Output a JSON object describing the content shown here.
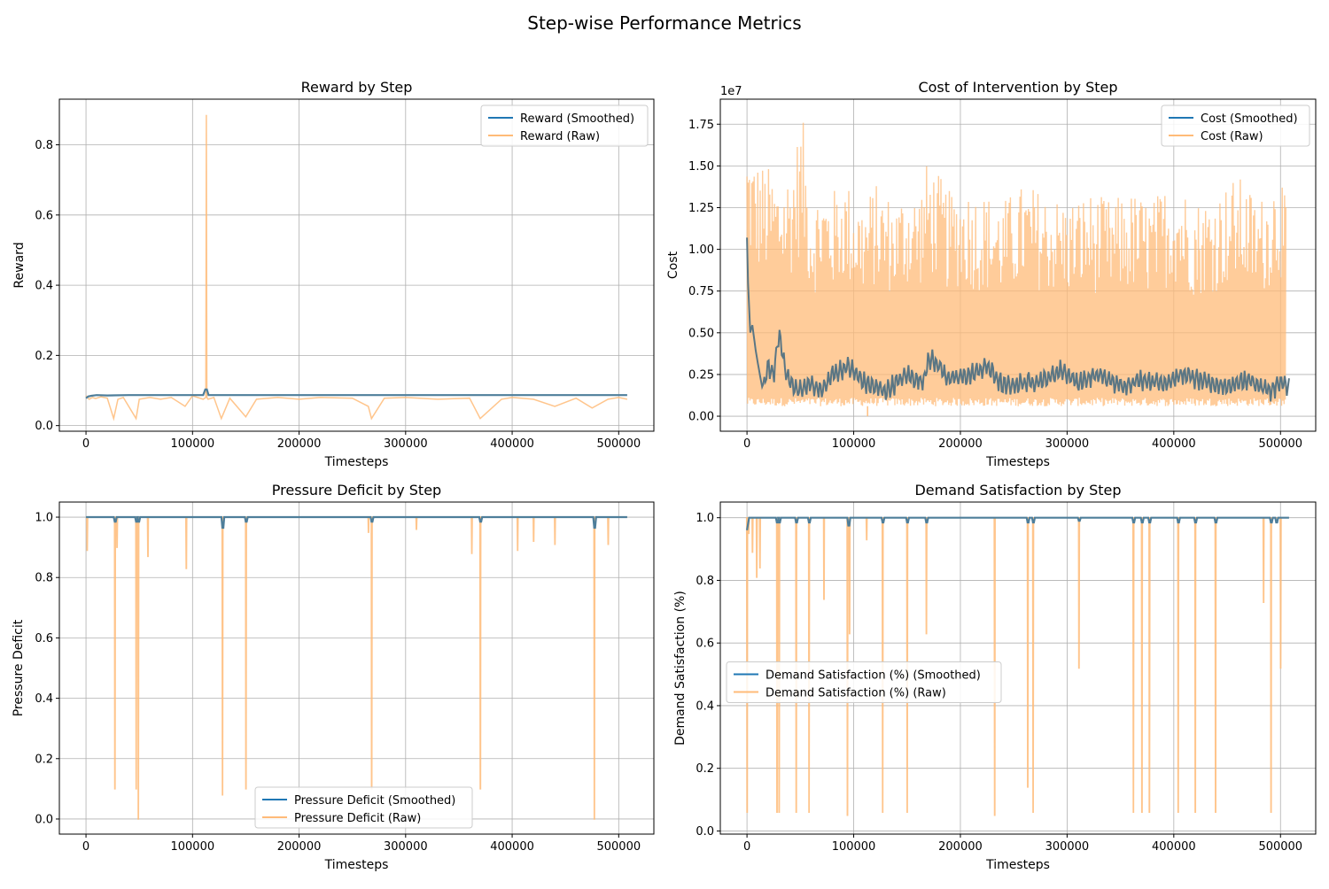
{
  "figure": {
    "title": "Step-wise Performance Metrics"
  },
  "colors": {
    "smoothed": "#1f77b4",
    "raw": "#ffbb78",
    "grid": "#b0b0b0"
  },
  "chart_data": [
    {
      "type": "line",
      "title": "Reward by Step",
      "xlabel": "Timesteps",
      "ylabel": "Reward",
      "xlim": [
        -25000,
        533000
      ],
      "ylim": [
        -0.016,
        0.93
      ],
      "xticks": [
        0,
        100000,
        200000,
        300000,
        400000,
        500000
      ],
      "xtick_labels": [
        "0",
        "100000",
        "200000",
        "300000",
        "400000",
        "500000"
      ],
      "yticks": [
        0.0,
        0.2,
        0.4,
        0.6,
        0.8
      ],
      "ytick_labels": [
        "0.0",
        "0.2",
        "0.4",
        "0.6",
        "0.8"
      ],
      "grid": true,
      "legend_position": "top-right",
      "series": [
        {
          "name": "Reward (Smoothed)",
          "role": "smoothed",
          "x": [
            0,
            2000,
            5000,
            10000,
            20000,
            40000,
            60000,
            80000,
            100000,
            110000,
            112000,
            113500,
            115000,
            118000,
            130000,
            160000,
            200000,
            250000,
            300000,
            350000,
            400000,
            450000,
            500000,
            508000
          ],
          "y": [
            0.078,
            0.083,
            0.085,
            0.087,
            0.086,
            0.087,
            0.087,
            0.087,
            0.087,
            0.087,
            0.103,
            0.103,
            0.087,
            0.087,
            0.087,
            0.087,
            0.087,
            0.087,
            0.087,
            0.087,
            0.087,
            0.087,
            0.087,
            0.087
          ]
        },
        {
          "name": "Reward (Raw)",
          "role": "raw",
          "x": [
            0,
            3000,
            6000,
            9000,
            14000,
            20000,
            26000,
            30000,
            35000,
            47000,
            50000,
            60000,
            70000,
            80000,
            93000,
            100000,
            110000,
            112500,
            113000,
            113500,
            114500,
            120000,
            127000,
            135000,
            150000,
            160000,
            180000,
            200000,
            220000,
            250000,
            265000,
            268000,
            280000,
            300000,
            330000,
            360000,
            370000,
            390000,
            400000,
            420000,
            440000,
            460000,
            475000,
            490000,
            500000,
            508000
          ],
          "y": [
            0.085,
            0.075,
            0.08,
            0.077,
            0.082,
            0.078,
            0.02,
            0.075,
            0.08,
            0.02,
            0.075,
            0.08,
            0.075,
            0.08,
            0.055,
            0.085,
            0.075,
            0.08,
            0.885,
            0.08,
            0.075,
            0.08,
            0.02,
            0.078,
            0.025,
            0.075,
            0.08,
            0.075,
            0.08,
            0.078,
            0.055,
            0.02,
            0.078,
            0.08,
            0.075,
            0.078,
            0.02,
            0.075,
            0.08,
            0.075,
            0.055,
            0.078,
            0.05,
            0.075,
            0.08,
            0.075
          ]
        }
      ]
    },
    {
      "type": "line",
      "title": "Cost of Intervention by Step",
      "xlabel": "Timesteps",
      "ylabel": "Cost",
      "offset_label": "1e7",
      "xlim": [
        -25000,
        533000
      ],
      "ylim": [
        -0.09,
        1.9
      ],
      "xticks": [
        0,
        100000,
        200000,
        300000,
        400000,
        500000
      ],
      "xtick_labels": [
        "0",
        "100000",
        "200000",
        "300000",
        "400000",
        "500000"
      ],
      "yticks": [
        0.0,
        0.25,
        0.5,
        0.75,
        1.0,
        1.25,
        1.5,
        1.75
      ],
      "ytick_labels": [
        "0.00",
        "0.25",
        "0.50",
        "0.75",
        "1.00",
        "1.25",
        "1.50",
        "1.75"
      ],
      "grid": true,
      "legend_position": "top-right",
      "series": [
        {
          "name": "Cost (Smoothed)",
          "role": "smoothed",
          "x": [
            0,
            1000,
            3000,
            5000,
            8000,
            12000,
            15000,
            20000,
            25000,
            30000,
            35000,
            40000,
            50000,
            60000,
            70000,
            80000,
            95000,
            110000,
            130000,
            150000,
            165000,
            170000,
            180000,
            190000,
            210000,
            225000,
            240000,
            260000,
            280000,
            295000,
            310000,
            330000,
            350000,
            370000,
            390000,
            410000,
            430000,
            450000,
            470000,
            490000,
            500000,
            508000
          ],
          "y": [
            1.07,
            0.8,
            0.5,
            0.55,
            0.4,
            0.25,
            0.15,
            0.3,
            0.25,
            0.5,
            0.3,
            0.2,
            0.15,
            0.2,
            0.15,
            0.25,
            0.3,
            0.2,
            0.15,
            0.25,
            0.2,
            0.35,
            0.3,
            0.22,
            0.25,
            0.3,
            0.18,
            0.2,
            0.22,
            0.28,
            0.2,
            0.25,
            0.18,
            0.22,
            0.2,
            0.25,
            0.2,
            0.18,
            0.22,
            0.15,
            0.2,
            0.17
          ]
        },
        {
          "name": "Cost (Raw)",
          "role": "raw",
          "pattern": "spikes",
          "x": [
            0,
            5000,
            10000,
            20000,
            30000,
            40000,
            52000,
            60000,
            70000,
            80000,
            90000,
            100000,
            110000,
            120000,
            130000,
            140000,
            150000,
            160000,
            170000,
            180000,
            190000,
            200000,
            220000,
            240000,
            260000,
            280000,
            300000,
            320000,
            340000,
            360000,
            380000,
            400000,
            420000,
            440000,
            460000,
            480000,
            500000,
            505000
          ],
          "y": [
            1.7,
            1.6,
            1.55,
            1.5,
            1.45,
            1.5,
            1.81,
            1.3,
            1.4,
            1.35,
            1.45,
            1.35,
            1.3,
            1.4,
            1.35,
            1.3,
            1.4,
            1.35,
            1.55,
            1.45,
            1.35,
            1.4,
            1.35,
            1.3,
            1.4,
            1.35,
            1.3,
            1.35,
            1.3,
            1.35,
            1.3,
            1.45,
            1.3,
            1.35,
            1.45,
            1.3,
            1.52,
            1.27
          ],
          "baseline": 0.06,
          "dip": {
            "x": 113000,
            "y": 0.0
          }
        }
      ]
    },
    {
      "type": "line",
      "title": "Pressure Deficit by Step",
      "xlabel": "Timesteps",
      "ylabel": "Pressure Deficit",
      "xlim": [
        -25000,
        533000
      ],
      "ylim": [
        -0.05,
        1.05
      ],
      "xticks": [
        0,
        100000,
        200000,
        300000,
        400000,
        500000
      ],
      "xtick_labels": [
        "0",
        "100000",
        "200000",
        "300000",
        "400000",
        "500000"
      ],
      "yticks": [
        0.0,
        0.2,
        0.4,
        0.6,
        0.8,
        1.0
      ],
      "ytick_labels": [
        "0.0",
        "0.2",
        "0.4",
        "0.6",
        "0.8",
        "1.0"
      ],
      "grid": true,
      "legend_position": "lower center",
      "series": [
        {
          "name": "Pressure Deficit (Smoothed)",
          "role": "smoothed",
          "baseline": 1.0,
          "dips_x": [
            27000,
            47000,
            49000,
            128000,
            150000,
            268000,
            370000,
            477000
          ],
          "dips_y": [
            0.985,
            0.985,
            0.985,
            0.965,
            0.985,
            0.985,
            0.985,
            0.965
          ]
        },
        {
          "name": "Pressure Deficit (Raw)",
          "role": "raw",
          "baseline": 1.0,
          "dips_x": [
            1000,
            27000,
            29000,
            47000,
            49000,
            58000,
            94000,
            128000,
            150000,
            265000,
            268000,
            310000,
            362000,
            370000,
            405000,
            420000,
            440000,
            477000,
            490000
          ],
          "dips_y": [
            0.89,
            0.1,
            0.9,
            0.1,
            0.0,
            0.87,
            0.83,
            0.08,
            0.1,
            0.95,
            0.1,
            0.96,
            0.88,
            0.1,
            0.89,
            0.92,
            0.91,
            0.0,
            0.91
          ]
        }
      ]
    },
    {
      "type": "line",
      "title": "Demand Satisfaction by Step",
      "xlabel": "Timesteps",
      "ylabel": "Demand Satisfaction (%)",
      "xlim": [
        -25000,
        533000
      ],
      "ylim": [
        -0.01,
        1.05
      ],
      "xticks": [
        0,
        100000,
        200000,
        300000,
        400000,
        500000
      ],
      "xtick_labels": [
        "0",
        "100000",
        "200000",
        "300000",
        "400000",
        "500000"
      ],
      "yticks": [
        0.0,
        0.2,
        0.4,
        0.6,
        0.8,
        1.0
      ],
      "ytick_labels": [
        "0.0",
        "0.2",
        "0.4",
        "0.6",
        "0.8",
        "1.0"
      ],
      "grid": true,
      "legend_position": "center-left",
      "series": [
        {
          "name": "Demand Satisfaction (%) (Smoothed)",
          "role": "smoothed",
          "baseline": 1.0,
          "start": 0.96,
          "dips_x": [
            28000,
            30000,
            46000,
            58000,
            95000,
            127000,
            150000,
            168000,
            263000,
            268000,
            311000,
            362000,
            370000,
            377000,
            404000,
            420000,
            439000,
            491000,
            496000
          ],
          "dips_y": [
            0.985,
            0.985,
            0.985,
            0.985,
            0.975,
            0.985,
            0.985,
            0.985,
            0.985,
            0.985,
            0.99,
            0.985,
            0.985,
            0.985,
            0.985,
            0.985,
            0.985,
            0.985,
            0.985
          ]
        },
        {
          "name": "Demand Satisfaction (%) (Raw)",
          "role": "raw",
          "baseline": 1.0,
          "dips_x": [
            0,
            1500,
            5000,
            9000,
            12000,
            28000,
            30000,
            46000,
            58000,
            72000,
            94000,
            96000,
            112000,
            127000,
            150000,
            168000,
            232000,
            263000,
            268000,
            311000,
            362000,
            370000,
            377000,
            404000,
            420000,
            439000,
            484000,
            491000,
            500000
          ],
          "dips_y": [
            0.06,
            0.95,
            0.89,
            0.81,
            0.84,
            0.06,
            0.06,
            0.06,
            0.06,
            0.74,
            0.05,
            0.63,
            0.93,
            0.06,
            0.06,
            0.63,
            0.05,
            0.14,
            0.06,
            0.52,
            0.06,
            0.06,
            0.06,
            0.06,
            0.06,
            0.06,
            0.73,
            0.06,
            0.52
          ]
        }
      ]
    }
  ]
}
